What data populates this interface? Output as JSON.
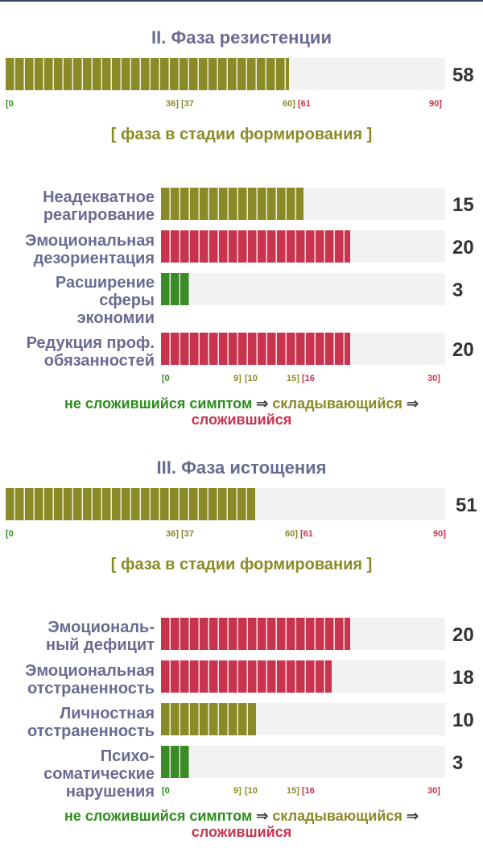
{
  "phase2": {
    "title": "II. Фаза резистенции",
    "score": "58",
    "fill": 0.644,
    "ticks": {
      "a": "[0",
      "b": "36]",
      "c": "[37",
      "d": "60]",
      "e": "[61",
      "f": "90]"
    },
    "status": "[ фаза в стадии формирования ]",
    "symptoms": [
      {
        "label_line1": "Неадекватное",
        "label_line2": "реагирование",
        "label_line3": "",
        "value": "15",
        "fill": 0.5,
        "color": "olive"
      },
      {
        "label_line1": "Эмоциональная",
        "label_line2": "дезориентация",
        "label_line3": "",
        "value": "20",
        "fill": 0.667,
        "color": "red"
      },
      {
        "label_line1": "Расширение",
        "label_line2": "сферы",
        "label_line3": "экономии",
        "value": "3",
        "fill": 0.1,
        "color": "green"
      },
      {
        "label_line1": "Редукция проф.",
        "label_line2": "обязанностей",
        "label_line3": "",
        "value": "20",
        "fill": 0.667,
        "color": "red"
      }
    ],
    "sym_ticks": {
      "a": "[0",
      "b": "9]",
      "c": "[10",
      "d": "15]",
      "e": "[16",
      "f": "30]"
    }
  },
  "phase3": {
    "title": "III. Фаза истощения",
    "score": "51",
    "fill": 0.567,
    "ticks": {
      "a": "[0",
      "b": "36]",
      "c": "[37",
      "d": "60]",
      "e": "[61",
      "f": "90]"
    },
    "status": "[ фаза в стадии формирования ]",
    "symptoms": [
      {
        "label_line1": "Эмоциональ-",
        "label_line2": "ный дефицит",
        "label_line3": "",
        "value": "20",
        "fill": 0.667,
        "color": "red"
      },
      {
        "label_line1": "Эмоциональная",
        "label_line2": "отстраненность",
        "label_line3": "",
        "value": "18",
        "fill": 0.6,
        "color": "red"
      },
      {
        "label_line1": "Личностная",
        "label_line2": "отстраненность",
        "label_line3": "",
        "value": "10",
        "fill": 0.333,
        "color": "olive"
      },
      {
        "label_line1": "Психо-",
        "label_line2": "соматические",
        "label_line3": "нарушения",
        "value": "3",
        "fill": 0.1,
        "color": "green"
      }
    ],
    "sym_ticks": {
      "a": "[0",
      "b": "9]",
      "c": "[10",
      "d": "15]",
      "e": "[16",
      "f": "30]"
    }
  },
  "legend": {
    "not_formed": "не сложившийся симптом",
    "arrow": "⇒",
    "forming": "складывающийся",
    "formed": "сложившийся"
  }
}
